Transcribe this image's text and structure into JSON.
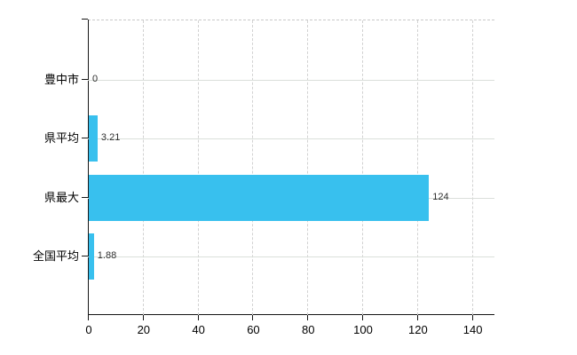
{
  "chart_data": {
    "type": "bar",
    "orientation": "horizontal",
    "title": "",
    "xlabel": "",
    "ylabel": "",
    "categories": [
      "豊中市",
      "県平均",
      "県最大",
      "全国平均"
    ],
    "values": [
      0,
      3.21,
      124,
      1.88
    ],
    "value_labels": [
      "0",
      "3.21",
      "124",
      "1.88"
    ],
    "x_ticks": [
      0,
      20,
      40,
      60,
      80,
      100,
      120,
      140
    ],
    "x_tick_labels": [
      "0",
      "20",
      "40",
      "60",
      "80",
      "100",
      "120",
      "140"
    ],
    "xlim": [
      0,
      148.2
    ],
    "grid": true,
    "legend": false,
    "colors": {
      "bar": "#38c0ee",
      "axis": "#161616",
      "vertical_gridline": "#d2d2d2",
      "horizontal_gridline": "#dadfda",
      "category_label": "#000000",
      "value_label": "#303030",
      "background": "#ffffff"
    }
  }
}
